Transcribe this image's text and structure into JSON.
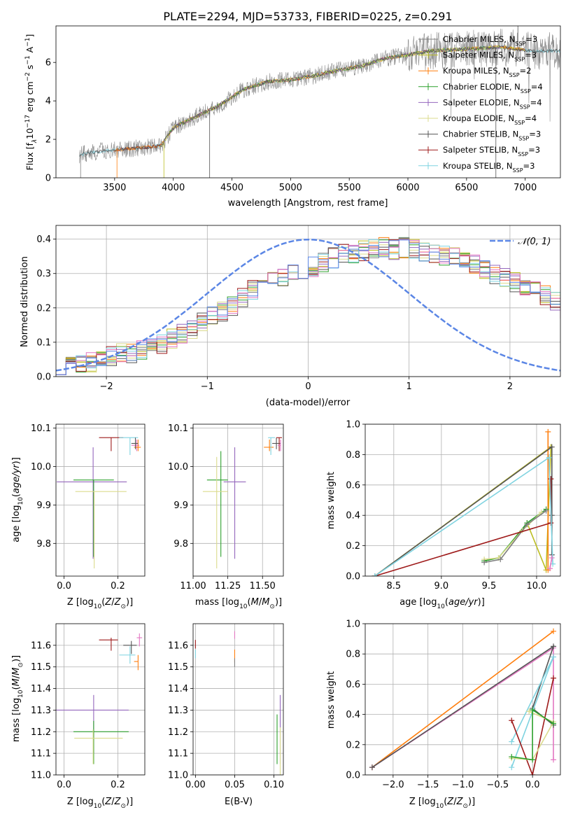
{
  "figure": {
    "title": "PLATE=2294, MJD=53733, FIBERID=0225, z=0.291"
  },
  "colors": {
    "chabrier_miles": "#7f7f7f",
    "salpeter_miles": "#bcbd22",
    "kroupa_miles": "#ff7f0e",
    "chabrier_elodie": "#2ca02c",
    "salpeter_elodie": "#9467bd",
    "kroupa_elodie": "#dbdb8d",
    "chabrier_stelib": "#555555",
    "salpeter_stelib": "#9e1a1a",
    "kroupa_stelib": "#7fd3e0",
    "pink": "#e377c2",
    "normal": "#5b86e5",
    "grid": "#b0b0b0"
  },
  "chart_data": [
    {
      "id": "spectrum",
      "type": "line",
      "xlabel": "wavelength [Angstrom, rest frame]",
      "ylabel_main": "Flux [f",
      "ylabel_units": "10",
      "xlim": [
        3000,
        7300
      ],
      "ylim": [
        0,
        7.9
      ],
      "xticks": [
        3500,
        4000,
        4500,
        5000,
        5500,
        6000,
        6500,
        7000
      ],
      "yticks": [
        0,
        2,
        4,
        6
      ],
      "legend_position": "upper right",
      "series": [
        {
          "label": "Chabrier MILES, N",
          "sub": "SSP",
          "n": "=3"
        },
        {
          "label": "Salpeter MILES, N",
          "sub": "SSP",
          "n": "=3"
        },
        {
          "label": "Kroupa MILES, N",
          "sub": "SSP",
          "n": "=2"
        },
        {
          "label": "Chabrier ELODIE, N",
          "sub": "SSP",
          "n": "=4"
        },
        {
          "label": "Salpeter ELODIE, N",
          "sub": "SSP",
          "n": "=4"
        },
        {
          "label": "Kroupa ELODIE, N",
          "sub": "SSP",
          "n": "=4"
        },
        {
          "label": "Chabrier STELIB, N",
          "sub": "SSP",
          "n": "=3"
        },
        {
          "label": "Salpeter STELIB, N",
          "sub": "SSP",
          "n": "=3"
        },
        {
          "label": "Kroupa STELIB, N",
          "sub": "SSP",
          "n": "=3"
        }
      ],
      "continuum": [
        [
          3200,
          1.2
        ],
        [
          3400,
          1.4
        ],
        [
          3600,
          1.5
        ],
        [
          3800,
          1.6
        ],
        [
          3900,
          1.7
        ],
        [
          4000,
          2.6
        ],
        [
          4200,
          3.2
        ],
        [
          4400,
          3.8
        ],
        [
          4600,
          4.6
        ],
        [
          4800,
          5.0
        ],
        [
          5000,
          5.1
        ],
        [
          5200,
          5.3
        ],
        [
          5400,
          5.6
        ],
        [
          5600,
          5.8
        ],
        [
          5800,
          6.2
        ],
        [
          6000,
          6.4
        ],
        [
          6200,
          6.6
        ],
        [
          6500,
          6.7
        ],
        [
          6800,
          6.8
        ],
        [
          7050,
          6.6
        ],
        [
          7300,
          6.6
        ]
      ]
    },
    {
      "id": "residuals",
      "type": "histogram",
      "xlabel": "(data-model)/error",
      "ylabel": "Normed distribution",
      "xlim": [
        -2.5,
        2.5
      ],
      "ylim": [
        0,
        0.44
      ],
      "xticks": [
        -2,
        -1,
        0,
        1,
        2
      ],
      "yticks": [
        0.0,
        0.1,
        0.2,
        0.3,
        0.4
      ],
      "legend": "𝒩(0, 1)",
      "legend_position": "upper right",
      "bin_width": 0.1,
      "profile": [
        0.035,
        0.04,
        0.038,
        0.042,
        0.05,
        0.06,
        0.07,
        0.065,
        0.075,
        0.085,
        0.095,
        0.11,
        0.125,
        0.14,
        0.16,
        0.18,
        0.19,
        0.205,
        0.23,
        0.25,
        0.265,
        0.28,
        0.29,
        0.3,
        0.31,
        0.32,
        0.33,
        0.345,
        0.355,
        0.36,
        0.365,
        0.37,
        0.375,
        0.37,
        0.375,
        0.37,
        0.365,
        0.36,
        0.35,
        0.35,
        0.33,
        0.325,
        0.31,
        0.3,
        0.29,
        0.275,
        0.26,
        0.25,
        0.235,
        0.22,
        0.2,
        0.185,
        0.17,
        0.155,
        0.14,
        0.125,
        0.115,
        0.1,
        0.09,
        0.085,
        0.075,
        0.07,
        0.065,
        0.06,
        0.058,
        0.055,
        0.05,
        0.05,
        0.048,
        0.05,
        0.05,
        0.048,
        0.05,
        0.05,
        0.05,
        0.052,
        0.05,
        0.052,
        0.05,
        0.055,
        0.06,
        0.058,
        0.06,
        0.062,
        0.06,
        0.065,
        0.06,
        0.062,
        0.06,
        0.06,
        0.058,
        0.06,
        0.058,
        0.06,
        0.055,
        0.06,
        0.058,
        0.06,
        0.055,
        0.05
      ]
    },
    {
      "id": "age-vs-Z",
      "type": "errorbar",
      "xlabel_main": "Z [log",
      "ylabel_main": "age  [log",
      "xlim": [
        -0.03,
        0.3
      ],
      "ylim": [
        9.715,
        10.11
      ],
      "xticks": [
        0.0,
        0.2
      ],
      "yticks": [
        9.8,
        9.9,
        10.0,
        10.1
      ],
      "points": [
        {
          "c": "salpeter_stelib",
          "x": 0.175,
          "y": 10.075,
          "xl": 0.045,
          "xh": 0.045,
          "yl": 0.035,
          "yh": 0.0
        },
        {
          "c": "kroupa_stelib",
          "x": 0.245,
          "y": 10.075,
          "xl": 0.04,
          "xh": 0.03,
          "yl": 0.045,
          "yh": 0.0
        },
        {
          "c": "pink",
          "x": 0.27,
          "y": 10.055,
          "xl": 0.02,
          "xh": 0.01,
          "yl": 0.015,
          "yh": 0.015
        },
        {
          "c": "kroupa_miles",
          "x": 0.275,
          "y": 10.05,
          "xl": 0.015,
          "xh": 0.01,
          "yl": 0.01,
          "yh": 0.02
        },
        {
          "c": "chabrier_stelib",
          "x": 0.265,
          "y": 10.06,
          "xl": 0.015,
          "xh": 0.01,
          "yl": 0.015,
          "yh": 0.015
        },
        {
          "c": "salpeter_elodie",
          "x": 0.108,
          "y": 9.96,
          "xl": 0.135,
          "xh": 0.125,
          "yl": 0.2,
          "yh": 0.09
        },
        {
          "c": "chabrier_elodie",
          "x": 0.11,
          "y": 9.965,
          "xl": 0.075,
          "xh": 0.075,
          "yl": 0.2,
          "yh": 0.0
        },
        {
          "c": "kroupa_elodie",
          "x": 0.112,
          "y": 9.935,
          "xl": 0.07,
          "xh": 0.12,
          "yl": 0.2,
          "yh": 0.0
        }
      ]
    },
    {
      "id": "age-vs-mass",
      "type": "errorbar",
      "xlabel_main": "mass [log",
      "xlim": [
        11.0,
        11.65
      ],
      "ylim": [
        9.715,
        10.11
      ],
      "xticks": [
        11.0,
        11.25,
        11.5
      ],
      "xtick_labels": [
        "11.00",
        "11.25",
        "11.50"
      ],
      "yticks": [
        9.8,
        9.9,
        10.0,
        10.1
      ],
      "points": [
        {
          "c": "kroupa_miles",
          "x": 11.55,
          "y": 10.05,
          "xl": 0.04,
          "xh": 0.03,
          "yl": 0.01,
          "yh": 0.02
        },
        {
          "c": "kroupa_stelib",
          "x": 11.56,
          "y": 10.075,
          "xl": 0.02,
          "xh": 0.03,
          "yl": 0.045,
          "yh": 0.0
        },
        {
          "c": "chabrier_stelib",
          "x": 11.6,
          "y": 10.06,
          "xl": 0.03,
          "xh": 0.03,
          "yl": 0.015,
          "yh": 0.015
        },
        {
          "c": "salpeter_stelib",
          "x": 11.62,
          "y": 10.075,
          "xl": 0.02,
          "xh": 0.02,
          "yl": 0.035,
          "yh": 0.0
        },
        {
          "c": "pink",
          "x": 11.63,
          "y": 10.055,
          "xl": 0.02,
          "xh": 0.0,
          "yl": 0.015,
          "yh": 0.015
        },
        {
          "c": "salpeter_elodie",
          "x": 11.3,
          "y": 9.96,
          "xl": 0.08,
          "xh": 0.08,
          "yl": 0.2,
          "yh": 0.09
        },
        {
          "c": "chabrier_elodie",
          "x": 11.2,
          "y": 9.965,
          "xl": 0.1,
          "xh": 0.05,
          "yl": 0.2,
          "yh": 0.075
        },
        {
          "c": "kroupa_elodie",
          "x": 11.17,
          "y": 9.935,
          "xl": 0.1,
          "xh": 0.08,
          "yl": 0.2,
          "yh": 0.09
        }
      ]
    },
    {
      "id": "weight-vs-age",
      "type": "line",
      "xlabel_main": "age  [log",
      "ylabel": "mass weight",
      "xlim": [
        8.2,
        10.25
      ],
      "ylim": [
        0,
        1.0
      ],
      "xticks": [
        8.5,
        9.0,
        9.5,
        10.0
      ],
      "yticks": [
        0.0,
        0.2,
        0.4,
        0.6,
        0.8,
        1.0
      ],
      "series": [
        {
          "c": "salpeter_miles",
          "pts": [
            [
              8.3,
              0.0
            ],
            [
              10.15,
              0.85
            ],
            [
              10.1,
              0.04
            ],
            [
              9.9,
              0.35
            ]
          ]
        },
        {
          "c": "kroupa_miles",
          "pts": [
            [
              10.12,
              0.95
            ],
            [
              10.12,
              0.04
            ]
          ]
        },
        {
          "c": "chabrier_elodie",
          "pts": [
            [
              9.45,
              0.1
            ],
            [
              9.6,
              0.12
            ],
            [
              9.9,
              0.35
            ],
            [
              10.1,
              0.44
            ]
          ]
        },
        {
          "c": "kroupa_elodie",
          "pts": [
            [
              9.45,
              0.11
            ],
            [
              9.6,
              0.12
            ],
            [
              9.85,
              0.3
            ],
            [
              10.05,
              0.42
            ]
          ]
        },
        {
          "c": "chabrier_miles",
          "pts": [
            [
              9.45,
              0.09
            ],
            [
              9.62,
              0.11
            ],
            [
              9.9,
              0.34
            ],
            [
              10.1,
              0.43
            ]
          ]
        },
        {
          "c": "chabrier_stelib",
          "pts": [
            [
              8.3,
              0.0
            ],
            [
              10.16,
              0.85
            ],
            [
              10.16,
              0.4
            ],
            [
              10.16,
              0.14
            ]
          ]
        },
        {
          "c": "salpeter_stelib",
          "pts": [
            [
              8.3,
              0.0
            ],
            [
              10.15,
              0.35
            ],
            [
              10.15,
              0.64
            ]
          ]
        },
        {
          "c": "kroupa_stelib",
          "pts": [
            [
              8.3,
              0.0
            ],
            [
              10.13,
              0.78
            ],
            [
              10.17,
              0.08
            ]
          ]
        },
        {
          "c": "pink",
          "pts": [
            [
              10.14,
              0.05
            ],
            [
              10.16,
              0.12
            ]
          ]
        }
      ]
    },
    {
      "id": "mass-vs-Z",
      "type": "errorbar",
      "xlabel_main": "Z [log",
      "ylabel_main": "mass [log",
      "xlim": [
        -0.03,
        0.3
      ],
      "ylim": [
        11.0,
        11.7
      ],
      "xticks": [
        0.0,
        0.2
      ],
      "yticks": [
        11.0,
        11.1,
        11.2,
        11.3,
        11.4,
        11.5,
        11.6
      ],
      "points": [
        {
          "c": "salpeter_stelib",
          "x": 0.175,
          "y": 11.625,
          "xl": 0.045,
          "xh": 0.025,
          "yl": 0.05,
          "yh": 0.01
        },
        {
          "c": "chabrier_stelib",
          "x": 0.25,
          "y": 11.6,
          "xl": 0.03,
          "xh": 0.02,
          "yl": 0.04,
          "yh": 0.02
        },
        {
          "c": "kroupa_stelib",
          "x": 0.245,
          "y": 11.555,
          "xl": 0.04,
          "xh": 0.02,
          "yl": 0.04,
          "yh": 0.04
        },
        {
          "c": "pink",
          "x": 0.28,
          "y": 11.635,
          "xl": 0.01,
          "xh": 0.01,
          "yl": 0.04,
          "yh": 0.02
        },
        {
          "c": "kroupa_miles",
          "x": 0.275,
          "y": 11.525,
          "xl": 0.015,
          "xh": 0.0,
          "yl": 0.04,
          "yh": 0.03
        },
        {
          "c": "salpeter_elodie",
          "x": 0.11,
          "y": 11.3,
          "xl": 0.14,
          "xh": 0.13,
          "yl": 0.2,
          "yh": 0.07
        },
        {
          "c": "chabrier_elodie",
          "x": 0.11,
          "y": 11.2,
          "xl": 0.075,
          "xh": 0.13,
          "yl": 0.15,
          "yh": 0.05
        },
        {
          "c": "kroupa_elodie",
          "x": 0.108,
          "y": 11.17,
          "xl": 0.07,
          "xh": 0.11,
          "yl": 0.12,
          "yh": 0.04
        }
      ]
    },
    {
      "id": "mass-vs-EBV",
      "type": "errorbar",
      "xlabel": "E(B-V)",
      "xlim": [
        -0.003,
        0.112
      ],
      "ylim": [
        11.0,
        11.7
      ],
      "xticks": [
        0.0,
        0.05,
        0.1
      ],
      "xtick_labels": [
        "0.00",
        "0.05",
        "0.10"
      ],
      "yticks": [
        11.0,
        11.1,
        11.2,
        11.3,
        11.4,
        11.5,
        11.6
      ],
      "points": [
        {
          "c": "salpeter_stelib",
          "x": 0.0,
          "y": 11.6,
          "xl": 0,
          "xh": 0,
          "yl": 0.015,
          "yh": 0.025
        },
        {
          "c": "kroupa_stelib",
          "x": 0.0,
          "y": 11.56,
          "xl": 0,
          "xh": 0,
          "yl": 0.02,
          "yh": 0.02
        },
        {
          "c": "pink",
          "x": 0.05,
          "y": 11.645,
          "xl": 0,
          "xh": 0,
          "yl": 0.015,
          "yh": 0.02
        },
        {
          "c": "kroupa_miles",
          "x": 0.05,
          "y": 11.55,
          "xl": 0,
          "xh": 0,
          "yl": 0.03,
          "yh": 0.03
        },
        {
          "c": "chabrier_miles",
          "x": 0.05,
          "y": 11.52,
          "xl": 0,
          "xh": 0,
          "yl": 0.02,
          "yh": 0.02
        },
        {
          "c": "salpeter_elodie",
          "x": 0.108,
          "y": 11.25,
          "xl": 0,
          "xh": 0,
          "yl": 0.2,
          "yh": 0.12
        },
        {
          "c": "chabrier_elodie",
          "x": 0.104,
          "y": 11.15,
          "xl": 0,
          "xh": 0,
          "yl": 0.1,
          "yh": 0.13
        },
        {
          "c": "kroupa_elodie",
          "x": 0.108,
          "y": 11.1,
          "xl": 0,
          "xh": 0,
          "yl": 0.1,
          "yh": 0.12
        }
      ]
    },
    {
      "id": "weight-vs-Z",
      "type": "line",
      "xlabel_main": "Z [log",
      "ylabel": "mass weight",
      "xlim": [
        -2.4,
        0.4
      ],
      "ylim": [
        0,
        1.0
      ],
      "xticks": [
        -2.0,
        -1.5,
        -1.0,
        -0.5,
        0.0
      ],
      "yticks": [
        0.0,
        0.2,
        0.4,
        0.6,
        0.8,
        1.0
      ],
      "series": [
        {
          "c": "kroupa_miles",
          "pts": [
            [
              -2.3,
              0.05
            ],
            [
              0.3,
              0.95
            ]
          ]
        },
        {
          "c": "pink",
          "pts": [
            [
              -2.3,
              0.05
            ],
            [
              0.3,
              0.84
            ],
            [
              0.3,
              0.1
            ]
          ]
        },
        {
          "c": "chabrier_stelib",
          "pts": [
            [
              -2.3,
              0.05
            ],
            [
              0.3,
              0.85
            ],
            [
              0.0,
              0.44
            ],
            [
              0.3,
              0.33
            ]
          ]
        },
        {
          "c": "kroupa_stelib",
          "pts": [
            [
              -0.3,
              0.05
            ],
            [
              0.0,
              0.42
            ],
            [
              0.3,
              0.78
            ],
            [
              -0.3,
              0.22
            ]
          ]
        },
        {
          "c": "salpeter_stelib",
          "pts": [
            [
              -0.3,
              0.36
            ],
            [
              0.0,
              0.0
            ],
            [
              0.3,
              0.64
            ]
          ]
        },
        {
          "c": "kroupa_elodie",
          "pts": [
            [
              -0.05,
              0.42
            ],
            [
              0.3,
              0.35
            ],
            [
              0.0,
              0.1
            ],
            [
              -0.3,
              0.11
            ]
          ]
        },
        {
          "c": "chabrier_elodie",
          "pts": [
            [
              -0.3,
              0.12
            ],
            [
              0.0,
              0.1
            ],
            [
              0.0,
              0.43
            ],
            [
              0.3,
              0.34
            ]
          ]
        }
      ]
    }
  ]
}
